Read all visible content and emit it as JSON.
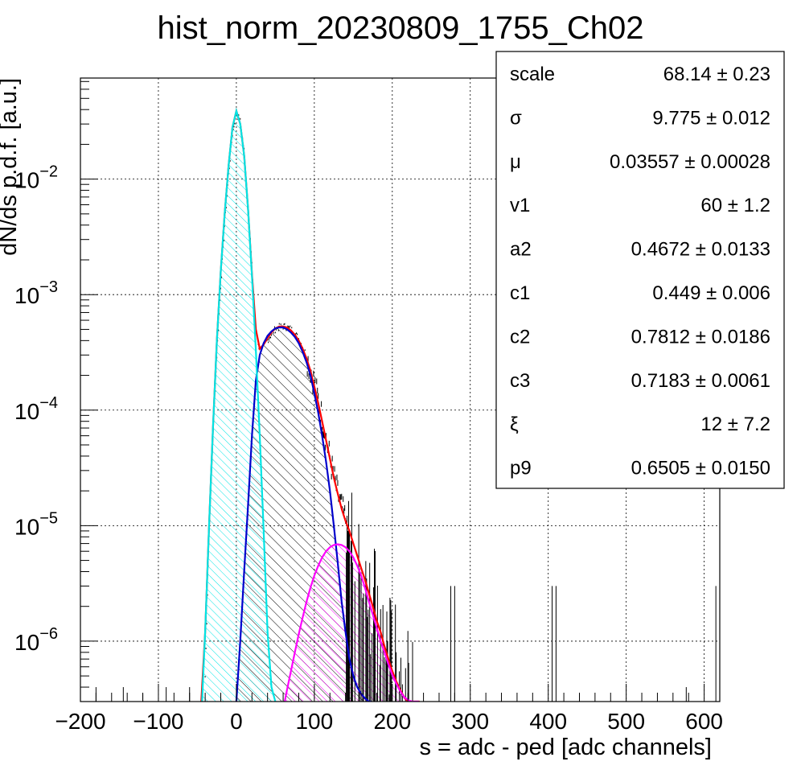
{
  "chart_data": {
    "type": "histogram",
    "title": "hist_norm_20230809_1755_Ch02",
    "xlabel": "s = adc - ped [adc channels]",
    "ylabel": "dN/ds p.d.f. [a.u.]",
    "xlim": [
      -200,
      620
    ],
    "ylim": [
      3e-07,
      0.075
    ],
    "yscale": "log",
    "grid": true,
    "x_ticks": [
      -200,
      -100,
      0,
      100,
      200,
      300,
      400,
      500,
      600
    ],
    "x_tick_labels": [
      "−200",
      "−100",
      "0",
      "100",
      "200",
      "300",
      "400",
      "500",
      "600"
    ],
    "y_ticks": [
      {
        "value": 0.01,
        "base": "10",
        "exp": "−2"
      },
      {
        "value": 0.001,
        "base": "10",
        "exp": "−3"
      },
      {
        "value": 0.0001,
        "base": "10",
        "exp": "−4"
      },
      {
        "value": 1e-05,
        "base": "10",
        "exp": "−5"
      },
      {
        "value": 1e-06,
        "base": "10",
        "exp": "−6"
      }
    ],
    "colors": {
      "data": "#000000",
      "total_fit": "#ff0000",
      "pedestal": "#00e5e5",
      "one_pe": "#0000cc",
      "two_pe": "#ff00ff",
      "grid": "#000000"
    },
    "histogram_envelope": {
      "x": [
        -40,
        -35,
        -30,
        -25,
        -20,
        -15,
        -10,
        -5,
        0,
        5,
        10,
        15,
        20,
        25,
        30,
        35,
        40,
        45,
        50,
        55,
        60,
        65,
        70,
        75,
        80,
        85,
        90,
        95,
        100,
        105,
        110,
        115,
        120,
        125,
        130,
        135,
        140,
        145,
        150,
        155,
        160,
        165,
        170,
        175,
        180,
        185,
        190,
        195,
        200,
        205,
        210,
        215,
        220,
        225,
        230
      ],
      "y": [
        5e-07,
        8e-06,
        6e-05,
        0.0003,
        0.0012,
        0.004,
        0.011,
        0.025,
        0.038,
        0.032,
        0.018,
        0.0065,
        0.0018,
        0.0005,
        0.00033,
        0.00036,
        0.00041,
        0.00046,
        0.00051,
        0.00053,
        0.00054,
        0.00053,
        0.00051,
        0.00047,
        0.00042,
        0.00036,
        0.0003,
        0.00024,
        0.00018,
        0.00013,
        9e-05,
        6e-05,
        4e-05,
        2.8e-05,
        2e-05,
        1.5e-05,
        1.2e-05,
        1e-05,
        8e-06,
        6e-06,
        4.5e-06,
        3.5e-06,
        2.8e-06,
        2.2e-06,
        1.8e-06,
        1.4e-06,
        1.1e-06,
        9e-07,
        7e-07,
        6e-07,
        5e-07,
        4e-07,
        3.5e-07,
        3.2e-07,
        3e-07
      ]
    },
    "isolated_bins": {
      "x": [
        -180,
        -145,
        -120,
        -90,
        -60,
        275,
        280,
        405,
        410,
        577,
        615
      ],
      "y": [
        4e-07,
        4e-07,
        3.5e-07,
        4e-07,
        4e-07,
        3e-06,
        3e-06,
        3e-06,
        3e-06,
        4e-07,
        3e-06
      ]
    },
    "series": [
      {
        "x": [
          -45,
          -40,
          -35,
          -30,
          -25,
          -20,
          -15,
          -10,
          -5,
          0,
          5,
          10,
          15,
          20,
          25,
          30,
          35,
          40,
          45,
          50,
          55,
          60,
          65,
          70,
          75,
          80,
          85,
          90,
          95,
          100,
          105,
          110,
          115,
          120,
          125,
          130,
          135,
          140,
          145,
          150,
          155,
          160,
          165,
          170,
          175,
          180,
          185,
          190,
          195,
          200,
          205,
          210,
          215,
          220,
          225,
          230,
          235
        ],
        "y": [
          3e-07,
          1.2e-06,
          1e-05,
          7e-05,
          0.0004,
          0.0016,
          0.005,
          0.013,
          0.028,
          0.039,
          0.03,
          0.016,
          0.0055,
          0.0015,
          0.0005,
          0.00034,
          0.00037,
          0.00042,
          0.00047,
          0.00051,
          0.00053,
          0.00053,
          0.00052,
          0.00049,
          0.00045,
          0.0004,
          0.00034,
          0.00028,
          0.00022,
          0.00016,
          0.000115,
          8e-05,
          5.5e-05,
          3.8e-05,
          2.6e-05,
          1.9e-05,
          1.4e-05,
          1.1e-05,
          9e-06,
          7e-06,
          5.5e-06,
          4.3e-06,
          3.4e-06,
          2.6e-06,
          2e-06,
          1.5e-06,
          1.2e-06,
          9e-07,
          7e-07,
          5.5e-07,
          4.5e-07,
          3.8e-07,
          3.3e-07,
          3e-07,
          3e-07,
          3e-07,
          3e-07
        ]
      },
      {
        "x": [
          -44,
          -40,
          -35,
          -30,
          -25,
          -20,
          -15,
          -10,
          -5,
          0,
          5,
          10,
          15,
          20,
          25,
          30,
          35,
          40,
          45,
          50
        ],
        "y": [
          3e-07,
          1.2e-06,
          1e-05,
          7e-05,
          0.0004,
          0.0016,
          0.005,
          0.013,
          0.028,
          0.039,
          0.03,
          0.016,
          0.0055,
          0.00145,
          0.00033,
          6e-05,
          9e-06,
          1.2e-06,
          4e-07,
          3e-07
        ]
      },
      {
        "x": [
          0,
          5,
          10,
          15,
          20,
          25,
          30,
          35,
          40,
          45,
          50,
          55,
          60,
          65,
          70,
          75,
          80,
          85,
          90,
          95,
          100,
          105,
          110,
          115,
          120,
          125,
          130,
          135,
          140,
          145,
          150,
          155,
          160,
          165,
          170,
          173
        ],
        "y": [
          3e-07,
          1e-06,
          4e-06,
          1.5e-05,
          6e-05,
          0.00018,
          0.0003,
          0.00038,
          0.00044,
          0.00048,
          0.00051,
          0.00052,
          0.00052,
          0.0005,
          0.00047,
          0.00043,
          0.00038,
          0.00032,
          0.00026,
          0.0002,
          0.00014,
          9.5e-05,
          6e-05,
          3.6e-05,
          2e-05,
          1e-05,
          4.8e-06,
          2.2e-06,
          1.2e-06,
          7e-07,
          5e-07,
          4e-07,
          3.5e-07,
          3.2e-07,
          3e-07,
          3e-07
        ]
      },
      {
        "x": [
          62,
          65,
          70,
          75,
          80,
          85,
          90,
          95,
          100,
          105,
          110,
          115,
          120,
          125,
          130,
          135,
          140,
          145,
          150,
          155,
          160,
          165,
          170,
          175,
          180,
          185,
          190,
          195,
          200,
          205,
          210,
          215,
          220,
          225,
          230,
          234
        ],
        "y": [
          3e-07,
          3.8e-07,
          5.5e-07,
          8e-07,
          1.15e-06,
          1.6e-06,
          2.2e-06,
          2.9e-06,
          3.7e-06,
          4.5e-06,
          5.3e-06,
          6e-06,
          6.5e-06,
          6.8e-06,
          6.9e-06,
          6.8e-06,
          6.5e-06,
          6e-06,
          5.3e-06,
          4.5e-06,
          3.7e-06,
          2.9e-06,
          2.2e-06,
          1.7e-06,
          1.3e-06,
          1e-06,
          8e-07,
          6.3e-07,
          5.1e-07,
          4.3e-07,
          3.7e-07,
          3.3e-07,
          3.1e-07,
          3e-07,
          3e-07,
          3e-07
        ]
      }
    ],
    "stats_box": [
      {
        "label": "scale",
        "value": "68.14 ± 0.23"
      },
      {
        "label": "σ",
        "value": "9.775 ± 0.012"
      },
      {
        "label": "μ",
        "value": "0.03557 ± 0.00028"
      },
      {
        "label": "v1",
        "value": "60 ± 1.2"
      },
      {
        "label": "a2",
        "value": "0.4672 ± 0.0133"
      },
      {
        "label": "c1",
        "value": "0.449 ± 0.006"
      },
      {
        "label": "c2",
        "value": "0.7812 ± 0.0186"
      },
      {
        "label": "c3",
        "value": "0.7183 ± 0.0061"
      },
      {
        "label": "ξ",
        "value": "12 ± 7.2"
      },
      {
        "label": "p9",
        "value": "0.6505 ± 0.0150"
      }
    ]
  }
}
